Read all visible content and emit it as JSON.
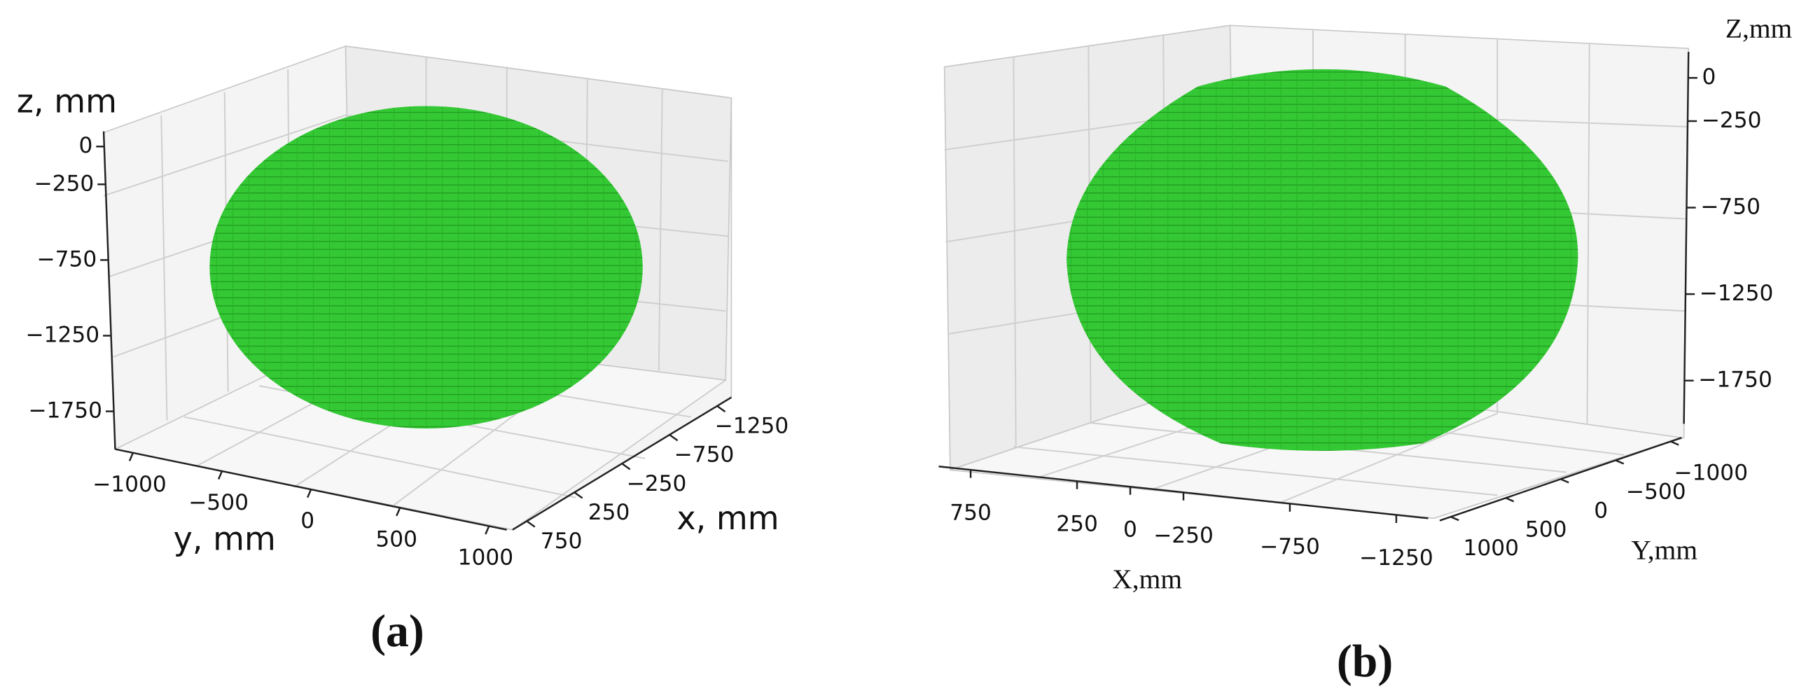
{
  "chart_data": [
    {
      "type": "voxel",
      "panel_label": "(a)",
      "xlabel": "x, mm",
      "ylabel": "y, mm",
      "zlabel": "z, mm",
      "color": "#33cc33",
      "xlim": [
        -1400,
        900
      ],
      "xticks": [
        {
          "value": -1250,
          "label": "−1250"
        },
        {
          "value": -750,
          "label": "−750"
        },
        {
          "value": -250,
          "label": "−250"
        },
        250,
        750
      ],
      "ylim": [
        -1100,
        1100
      ],
      "yticks": [
        {
          "value": -1000,
          "label": "−1000"
        },
        {
          "value": -500,
          "label": "−500"
        },
        0,
        500,
        1000
      ],
      "zlim": [
        -2000,
        100
      ],
      "zticks": [
        0,
        {
          "value": -250,
          "label": "−250"
        },
        {
          "value": -750,
          "label": "−750"
        },
        {
          "value": -1250,
          "label": "−1250"
        },
        {
          "value": -1750,
          "label": "−1750"
        }
      ]
    },
    {
      "type": "voxel",
      "panel_label": "(b)",
      "xlabel": "X,mm",
      "ylabel": "Y,mm",
      "zlabel": "Z,mm",
      "color": "#33cc33",
      "xlim": [
        900,
        -1400
      ],
      "xticks": [
        750,
        250,
        0,
        {
          "value": -250,
          "label": "−250"
        },
        {
          "value": -750,
          "label": "−750"
        },
        {
          "value": -1250,
          "label": "−1250"
        }
      ],
      "ylim": [
        1100,
        -1100
      ],
      "yticks": [
        1000,
        500,
        0,
        {
          "value": -500,
          "label": "−500"
        },
        {
          "value": -1000,
          "label": "−1000"
        }
      ],
      "zlim": [
        -2000,
        150
      ],
      "zticks": [
        0,
        {
          "value": -250,
          "label": "−250"
        },
        {
          "value": -750,
          "label": "−750"
        },
        {
          "value": -1250,
          "label": "−1250"
        },
        {
          "value": -1750,
          "label": "−1750"
        }
      ]
    }
  ]
}
